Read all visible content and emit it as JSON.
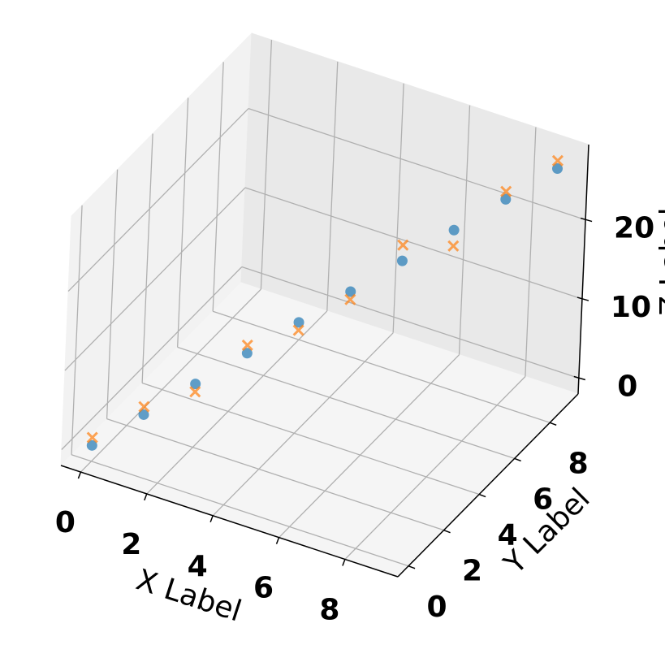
{
  "chart_data": {
    "type": "scatter3d",
    "xlabel": "X Label",
    "ylabel": "Y Label",
    "zlabel": "Z Label",
    "xlim": [
      -0.6,
      9.6
    ],
    "ylim": [
      -0.6,
      9.6
    ],
    "zlim": [
      -2,
      29.5
    ],
    "xticks": [
      0,
      2,
      4,
      6,
      8
    ],
    "yticks": [
      0,
      2,
      4,
      6,
      8
    ],
    "zticks": [
      0,
      10,
      20
    ],
    "grid": true,
    "series": [
      {
        "marker": "o",
        "color": "#1f77b4",
        "x": [
          0,
          1,
          2,
          3,
          4,
          5,
          6,
          7,
          8,
          9
        ],
        "y": [
          0,
          1,
          2,
          3,
          4,
          5,
          6,
          7,
          8,
          9
        ],
        "z": [
          0,
          3,
          6,
          9,
          12,
          15,
          18,
          21,
          24,
          27
        ]
      },
      {
        "marker": "x",
        "color": "#ff7f0e",
        "x": [
          0,
          1,
          2,
          3,
          4,
          5,
          6,
          7,
          8,
          9
        ],
        "y": [
          0,
          1,
          2,
          3,
          4,
          5,
          6,
          7,
          8,
          9
        ],
        "z": [
          1,
          4,
          5,
          10,
          11,
          14,
          20,
          19,
          25,
          28
        ]
      }
    ]
  }
}
